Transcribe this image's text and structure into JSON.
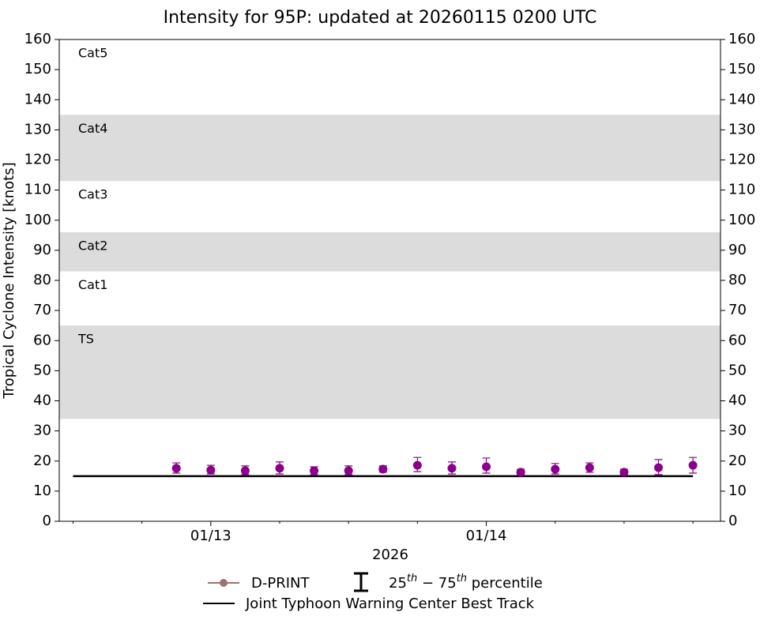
{
  "chart_data": {
    "type": "scatter",
    "title": "Intensity for 95P: updated at 20260115 0200 UTC",
    "xlabel": "2026",
    "ylabel": "Tropical Cyclone Intensity [knots]",
    "xlim": [
      12.45,
      14.85
    ],
    "xticks": [
      {
        "value": 13,
        "label": "01/13"
      },
      {
        "value": 14,
        "label": "01/14"
      }
    ],
    "xminorticks": [
      12.5,
      12.75,
      13.25,
      13.5,
      13.75,
      14.25,
      14.5,
      14.75
    ],
    "ylim": [
      0,
      160
    ],
    "yticks": [
      0,
      10,
      20,
      30,
      40,
      50,
      60,
      70,
      80,
      90,
      100,
      110,
      120,
      130,
      140,
      150,
      160
    ],
    "y2lim": [
      0,
      160
    ],
    "y2ticks": [
      0,
      10,
      20,
      30,
      40,
      50,
      60,
      70,
      80,
      90,
      100,
      110,
      120,
      130,
      140,
      150,
      160
    ],
    "grid": false,
    "bands": [
      {
        "label": "TS",
        "range": [
          34,
          65
        ],
        "shaded": true
      },
      {
        "label": "Cat1",
        "range": [
          65,
          83
        ],
        "shaded": false
      },
      {
        "label": "Cat2",
        "range": [
          83,
          96
        ],
        "shaded": true
      },
      {
        "label": "Cat3",
        "range": [
          96,
          113
        ],
        "shaded": false
      },
      {
        "label": "Cat4",
        "range": [
          113,
          135
        ],
        "shaded": true
      },
      {
        "label": "Cat5",
        "range": [
          135,
          160
        ],
        "shaded": false
      }
    ],
    "band_color": "#dcdcdc",
    "series": [
      {
        "name": "D-PRINT",
        "color": "#8b008b",
        "legend_color": "#a07070",
        "x": [
          12.875,
          13.0,
          13.125,
          13.25,
          13.375,
          13.5,
          13.625,
          13.75,
          13.875,
          14.0,
          14.125,
          14.25,
          14.375,
          14.5,
          14.625,
          14.75
        ],
        "values": [
          17.6,
          17.0,
          16.8,
          17.6,
          16.8,
          16.8,
          17.3,
          18.6,
          17.6,
          18.1,
          16.3,
          17.3,
          17.8,
          16.3,
          17.8,
          18.6
        ],
        "p25": [
          16.0,
          15.7,
          15.5,
          15.7,
          15.5,
          15.5,
          16.3,
          16.5,
          15.7,
          16.0,
          15.5,
          15.7,
          16.3,
          15.5,
          15.5,
          16.0
        ],
        "p75": [
          19.4,
          18.6,
          18.4,
          19.7,
          18.1,
          18.4,
          18.4,
          21.2,
          19.7,
          21.0,
          17.3,
          19.2,
          19.4,
          17.3,
          20.5,
          21.2
        ]
      },
      {
        "name": "Joint Typhoon Warning Center Best Track",
        "color": "#000000",
        "x": [
          12.5,
          14.75
        ],
        "values": [
          15,
          15
        ]
      }
    ],
    "errorbar_legend": [
      "25",
      "th",
      " − 75",
      "th",
      " percentile"
    ]
  }
}
